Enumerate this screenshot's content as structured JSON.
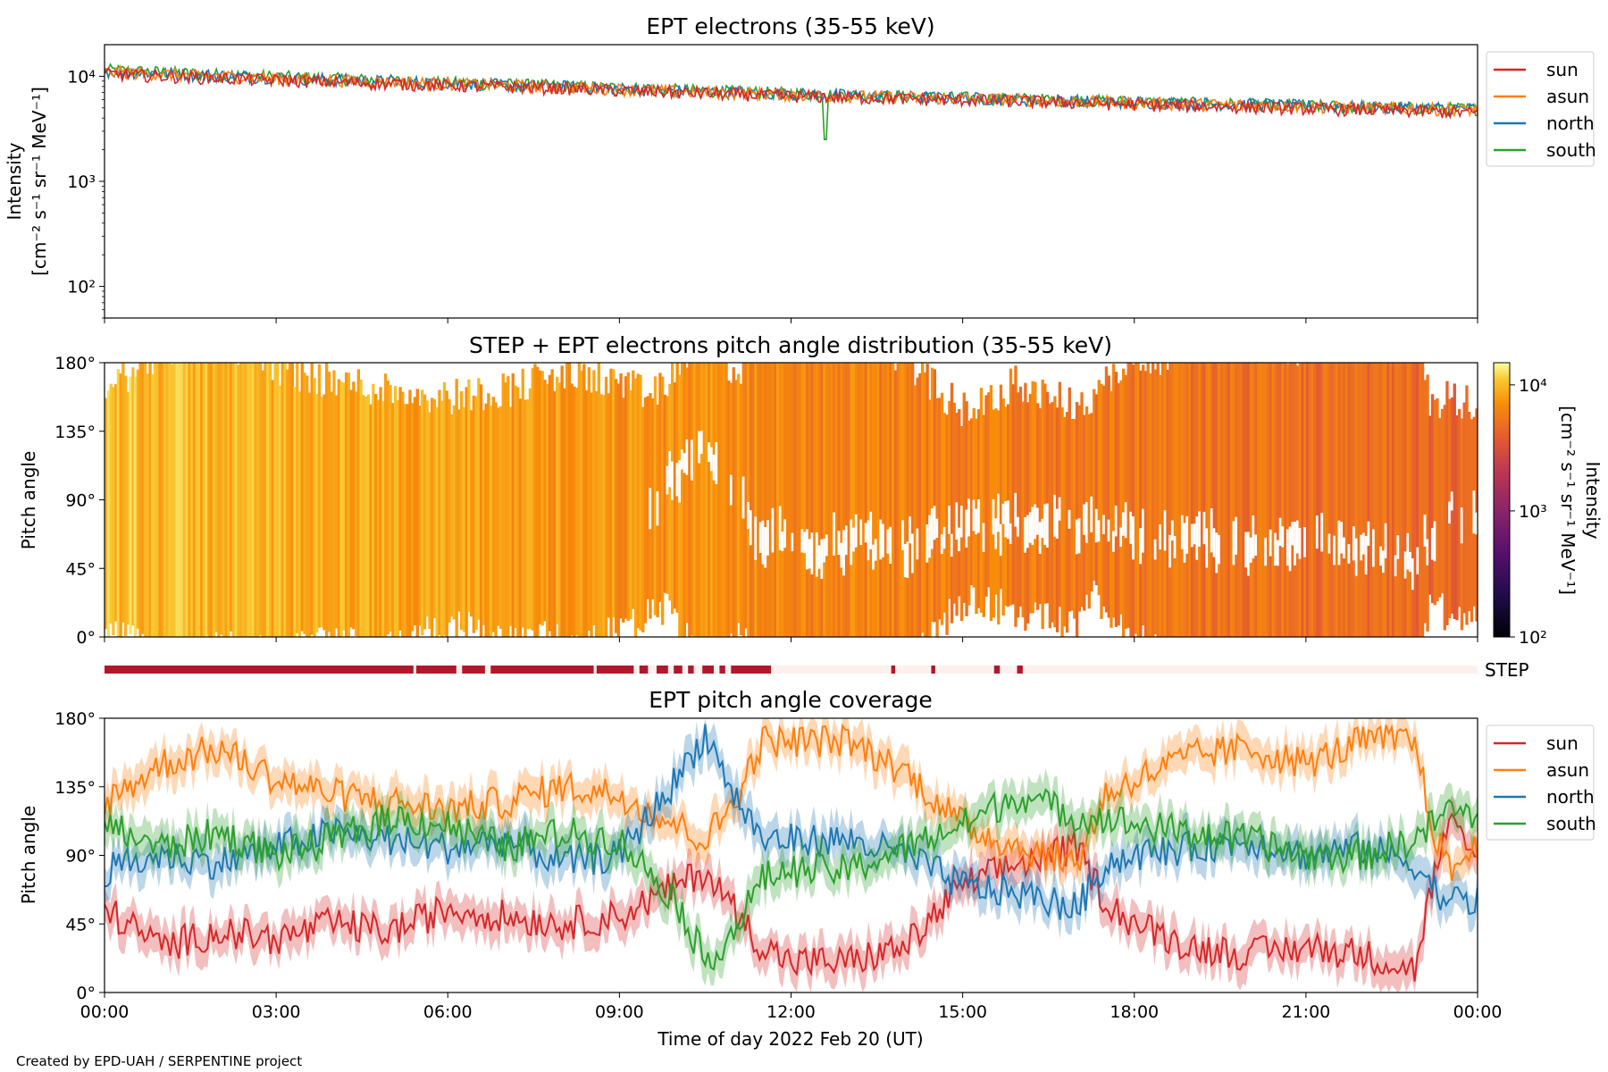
{
  "chart_data": [
    {
      "type": "line",
      "title": "EPT electrons (35-55 keV)",
      "ylabel_line1": "Intensity",
      "ylabel_line2": "[cm⁻² s⁻¹ sr⁻¹ MeV⁻¹]",
      "yscale": "log",
      "ylim": [
        50,
        20000
      ],
      "yticks": [
        {
          "v": 100,
          "label": "10²"
        },
        {
          "v": 1000,
          "label": "10³"
        },
        {
          "v": 10000,
          "label": "10⁴"
        }
      ],
      "legend_position": "outside-right-top",
      "series": [
        {
          "name": "sun",
          "color": "#d62728",
          "x": [
            0,
            2,
            4,
            6,
            8,
            10,
            12,
            14,
            16,
            18,
            20,
            22,
            24
          ],
          "values": [
            10500,
            9600,
            8800,
            8200,
            7700,
            7000,
            6500,
            6100,
            5800,
            5400,
            5100,
            4800,
            4500
          ]
        },
        {
          "name": "asun",
          "color": "#ff7f0e",
          "x": [
            0,
            2,
            4,
            6,
            8,
            10,
            12,
            14,
            16,
            18,
            20,
            22,
            24
          ],
          "values": [
            11000,
            10000,
            9200,
            8500,
            7900,
            7200,
            6700,
            6300,
            6000,
            5600,
            5300,
            5000,
            4800
          ]
        },
        {
          "name": "north",
          "color": "#1f77b4",
          "x": [
            0,
            2,
            4,
            6,
            8,
            10,
            12,
            14,
            16,
            18,
            20,
            22,
            24
          ],
          "values": [
            11200,
            10200,
            9300,
            8600,
            8000,
            7300,
            6800,
            6400,
            6000,
            5700,
            5400,
            5100,
            4900
          ]
        },
        {
          "name": "south",
          "color": "#2ca02c",
          "x": [
            0,
            2,
            4,
            6,
            8,
            10,
            12,
            14,
            16,
            18,
            20,
            22,
            24
          ],
          "values": [
            11500,
            10400,
            9500,
            8700,
            8100,
            7400,
            6900,
            6400,
            6100,
            5700,
            5400,
            5100,
            4900
          ]
        }
      ],
      "annotations": [
        {
          "series": "south",
          "x": 12.6,
          "value": 2500,
          "note": "dip"
        }
      ]
    },
    {
      "type": "heatmap",
      "title": "STEP + EPT electrons pitch angle distribution (35-55 keV)",
      "ylabel": "Pitch angle",
      "ylim": [
        0,
        180
      ],
      "yticks": [
        {
          "v": 0,
          "label": "0°"
        },
        {
          "v": 45,
          "label": "45°"
        },
        {
          "v": 90,
          "label": "90°"
        },
        {
          "v": 135,
          "label": "135°"
        },
        {
          "v": 180,
          "label": "180°"
        }
      ],
      "colorbar": {
        "label_line1": "Intensity",
        "label_line2": "[cm⁻² s⁻¹ sr⁻¹ MeV⁻¹]",
        "scale": "log",
        "range": [
          100,
          15000
        ],
        "ticks": [
          {
            "v": 100,
            "label": "10²"
          },
          {
            "v": 1000,
            "label": "10³"
          },
          {
            "v": 10000,
            "label": "10⁴"
          }
        ],
        "colormap": "inferno"
      },
      "approx_intensity_by_hour": [
        {
          "x": 0,
          "value": 10500
        },
        {
          "x": 6,
          "value": 8400
        },
        {
          "x": 12,
          "value": 6500
        },
        {
          "x": 18,
          "value": 5400
        },
        {
          "x": 24,
          "value": 4500
        }
      ]
    },
    {
      "type": "bar",
      "label": "STEP",
      "note": "STEP data coverage strip",
      "segments": [
        [
          0,
          5.4
        ],
        [
          5.45,
          6.15
        ],
        [
          6.25,
          6.65
        ],
        [
          6.75,
          8.55
        ],
        [
          8.6,
          9.25
        ],
        [
          9.35,
          9.5
        ],
        [
          9.65,
          9.85
        ],
        [
          9.95,
          10.1
        ],
        [
          10.2,
          10.3
        ],
        [
          10.45,
          10.65
        ],
        [
          10.75,
          10.85
        ],
        [
          10.95,
          11.65
        ],
        [
          13.75,
          13.82
        ],
        [
          14.45,
          14.52
        ],
        [
          15.55,
          15.65
        ],
        [
          15.95,
          16.05
        ]
      ]
    },
    {
      "type": "line",
      "title": "EPT pitch angle coverage",
      "ylabel": "Pitch angle",
      "xlabel": "Time of day 2022 Feb 20 (UT)",
      "xlim": [
        0,
        24
      ],
      "ylim": [
        0,
        180
      ],
      "xticks": [
        {
          "v": 0,
          "label": "00:00"
        },
        {
          "v": 3,
          "label": "03:00"
        },
        {
          "v": 6,
          "label": "06:00"
        },
        {
          "v": 9,
          "label": "09:00"
        },
        {
          "v": 12,
          "label": "12:00"
        },
        {
          "v": 15,
          "label": "15:00"
        },
        {
          "v": 18,
          "label": "18:00"
        },
        {
          "v": 21,
          "label": "21:00"
        },
        {
          "v": 24,
          "label": "00:00"
        }
      ],
      "yticks": [
        {
          "v": 0,
          "label": "0°"
        },
        {
          "v": 45,
          "label": "45°"
        },
        {
          "v": 90,
          "label": "90°"
        },
        {
          "v": 135,
          "label": "135°"
        },
        {
          "v": 180,
          "label": "180°"
        }
      ],
      "legend_position": "outside-right-top",
      "series": [
        {
          "name": "sun",
          "color": "#d62728",
          "x": [
            0,
            1,
            2,
            3,
            4,
            5,
            6,
            7,
            8,
            9,
            10,
            10.5,
            11,
            11.5,
            12,
            13,
            14,
            15,
            16,
            17,
            17.5,
            18,
            19,
            20,
            21,
            22,
            22.9,
            23.2,
            23.5,
            24
          ],
          "values": [
            55,
            30,
            40,
            35,
            45,
            40,
            55,
            50,
            45,
            50,
            70,
            80,
            55,
            30,
            20,
            20,
            30,
            70,
            85,
            95,
            60,
            45,
            30,
            25,
            30,
            25,
            15,
            70,
            110,
            85
          ]
        },
        {
          "name": "asun",
          "color": "#ff7f0e",
          "x": [
            0,
            1,
            2,
            3,
            4,
            5,
            6,
            7,
            8,
            9,
            10,
            10.5,
            11,
            11.5,
            12,
            13,
            14,
            15,
            16,
            17,
            17.5,
            18,
            19,
            20,
            21,
            22,
            22.9,
            23.2,
            23.5,
            24
          ],
          "values": [
            125,
            150,
            160,
            140,
            130,
            125,
            120,
            125,
            135,
            130,
            110,
            100,
            125,
            165,
            165,
            165,
            145,
            110,
            95,
            85,
            130,
            140,
            155,
            160,
            150,
            165,
            165,
            110,
            80,
            95
          ]
        },
        {
          "name": "north",
          "color": "#1f77b4",
          "x": [
            0,
            1,
            2,
            3,
            4,
            5,
            6,
            7,
            8,
            9,
            10,
            10.5,
            11,
            11.5,
            12,
            13,
            14,
            15,
            16,
            17,
            17.5,
            18,
            19,
            20,
            21,
            22,
            22.9,
            23.2,
            23.5,
            24
          ],
          "values": [
            80,
            90,
            85,
            95,
            105,
            100,
            95,
            100,
            85,
            90,
            140,
            170,
            130,
            100,
            100,
            100,
            90,
            70,
            65,
            55,
            85,
            90,
            95,
            100,
            90,
            95,
            85,
            70,
            60,
            60
          ]
        },
        {
          "name": "south",
          "color": "#2ca02c",
          "x": [
            0,
            1,
            2,
            3,
            4,
            5,
            6,
            7,
            8,
            9,
            10,
            10.5,
            11,
            11.5,
            12,
            13,
            14,
            15,
            16,
            17,
            17.5,
            18,
            19,
            20,
            21,
            22,
            22.9,
            23.2,
            23.5,
            24
          ],
          "values": [
            110,
            95,
            105,
            90,
            100,
            115,
            110,
            95,
            105,
            100,
            60,
            20,
            40,
            75,
            80,
            80,
            95,
            110,
            130,
            115,
            115,
            110,
            105,
            100,
            90,
            90,
            100,
            110,
            120,
            115
          ]
        }
      ]
    }
  ],
  "footer": "Created by EPD-UAH / SERPENTINE project"
}
